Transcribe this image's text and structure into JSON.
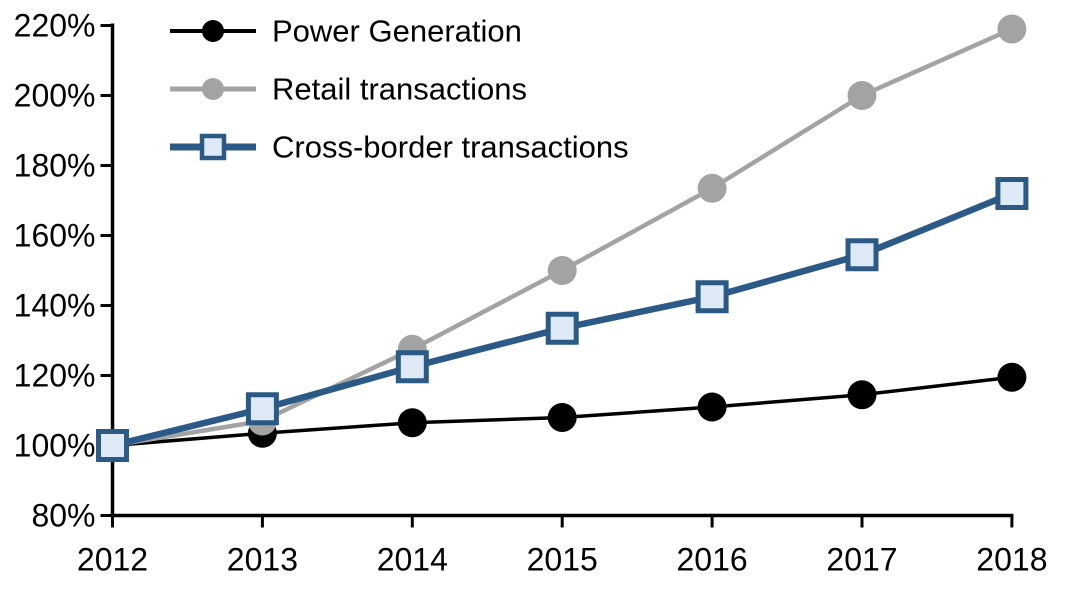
{
  "chart_data": {
    "type": "line",
    "title": "",
    "xlabel": "",
    "ylabel": "",
    "x": [
      2012,
      2013,
      2014,
      2015,
      2016,
      2017,
      2018
    ],
    "x_labels": [
      "2012",
      "2013",
      "2014",
      "2015",
      "2016",
      "2017",
      "2018"
    ],
    "ylim": [
      80,
      220
    ],
    "ytick_step": 20,
    "y_tick_labels": [
      "80%",
      "100%",
      "120%",
      "140%",
      "160%",
      "180%",
      "200%",
      "220%"
    ],
    "grid": false,
    "legend_position": "top-left",
    "axis_color": "#000000",
    "background_color": "#ffffff",
    "series": [
      {
        "name": "Power Generation",
        "values": [
          100,
          103.5,
          106.5,
          108,
          111,
          114.5,
          119.5
        ],
        "color": "#000000",
        "marker": "circle",
        "marker_fill": "#000000",
        "line_width": 3.5
      },
      {
        "name": "Retail transactions",
        "values": [
          100,
          107,
          127.5,
          150,
          173.5,
          200,
          219
        ],
        "color": "#a3a3a3",
        "marker": "circle",
        "marker_fill": "#a3a3a3",
        "line_width": 4.5
      },
      {
        "name": "Cross-border transactions",
        "values": [
          100,
          110.5,
          122.5,
          133.5,
          142.5,
          154.5,
          172
        ],
        "color": "#2b5a87",
        "marker": "square",
        "marker_fill": "#deeaf6",
        "line_width": 6.5
      }
    ]
  }
}
